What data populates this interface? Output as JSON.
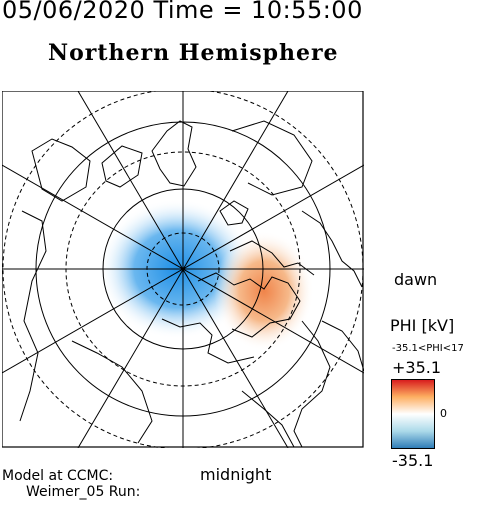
{
  "header": {
    "datetime": "05/06/2020 Time = 10:55:00",
    "hemisphere": "Northern Hemisphere"
  },
  "map": {
    "projection": "polar stereographic, north pole centered",
    "rings": "dashed and solid latitude circles",
    "meridian_lines": "radial spokes every 30 degrees",
    "land_outline_color": "#000000"
  },
  "labels": {
    "dawn": "dawn",
    "midnight": "midnight",
    "model_line1": "Model at CCMC:",
    "model_line2": "Weimer_05 Run:"
  },
  "colorbar": {
    "title": "PHI [kV]",
    "range_text": "-35.1<PHI<17",
    "max_label": "+35.1",
    "zero_label": "0",
    "min_label": "-35.1",
    "colors": [
      "#d7191c",
      "#fdae61",
      "#ffffff",
      "#abd9e9",
      "#2c7bb6"
    ]
  }
}
